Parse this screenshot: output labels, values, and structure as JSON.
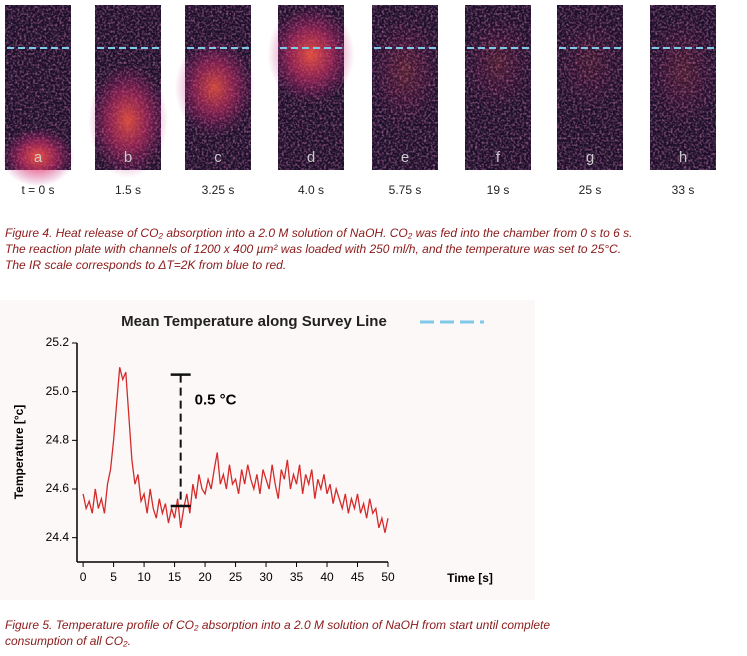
{
  "figure4": {
    "panels": [
      {
        "letter": "a",
        "time": "t = 0 s"
      },
      {
        "letter": "b",
        "time": "1.5 s"
      },
      {
        "letter": "c",
        "time": "3.25 s"
      },
      {
        "letter": "d",
        "time": "4.0 s"
      },
      {
        "letter": "e",
        "time": "5.75 s"
      },
      {
        "letter": "f",
        "time": "19 s"
      },
      {
        "letter": "g",
        "time": "25 s"
      },
      {
        "letter": "h",
        "time": "33 s"
      }
    ],
    "caption": [
      "Figure 4. Heat release of CO₂ absorption into a 2.0 M solution of NaOH. CO₂ was fed into the chamber from 0 s to 6 s.",
      "The reaction plate with channels of 1200 x 400 µm² was loaded with 250 ml/h, and the temperature was set to 25°C.",
      "The IR scale corresponds to ΔT=2K from blue to red."
    ]
  },
  "chart_data": {
    "type": "line",
    "title": "Mean Temperature along Survey Line",
    "x_label": "Time [s]",
    "y_label": "Temperature [°c]",
    "x": [
      0,
      0.5,
      1,
      1.5,
      2,
      2.5,
      3,
      3.5,
      4,
      4.5,
      5,
      5.5,
      6,
      6.5,
      7,
      7.5,
      8,
      8.5,
      9,
      9.5,
      10,
      10.5,
      11,
      11.5,
      12,
      12.5,
      13,
      13.5,
      14,
      14.5,
      15,
      15.5,
      16,
      16.5,
      17,
      17.5,
      18,
      18.5,
      19,
      19.5,
      20,
      20.5,
      21,
      21.5,
      22,
      22.5,
      23,
      23.5,
      24,
      24.5,
      25,
      25.5,
      26,
      26.5,
      27,
      27.5,
      28,
      28.5,
      29,
      29.5,
      30,
      30.5,
      31,
      31.5,
      32,
      32.5,
      33,
      33.5,
      34,
      34.5,
      35,
      35.5,
      36,
      36.5,
      37,
      37.5,
      38,
      38.5,
      39,
      39.5,
      40,
      40.5,
      41,
      41.5,
      42,
      42.5,
      43,
      43.5,
      44,
      44.5,
      45,
      45.5,
      46,
      46.5,
      47,
      47.5,
      48,
      48.5,
      49,
      49.5,
      50
    ],
    "series": [
      {
        "name": "Survey Line",
        "color": "#d42a2a",
        "values": [
          24.58,
          24.52,
          24.55,
          24.5,
          24.6,
          24.52,
          24.56,
          24.5,
          24.62,
          24.68,
          24.8,
          24.95,
          25.1,
          25.05,
          25.08,
          24.9,
          24.72,
          24.62,
          24.66,
          24.55,
          24.58,
          24.5,
          24.6,
          24.52,
          24.48,
          24.56,
          24.5,
          24.54,
          24.46,
          24.52,
          24.48,
          24.56,
          24.44,
          24.52,
          24.58,
          24.5,
          24.62,
          24.56,
          24.66,
          24.6,
          24.58,
          24.64,
          24.6,
          24.68,
          24.75,
          24.62,
          24.66,
          24.6,
          24.7,
          24.62,
          24.64,
          24.58,
          24.68,
          24.62,
          24.7,
          24.64,
          24.6,
          24.66,
          24.58,
          24.68,
          24.64,
          24.6,
          24.7,
          24.62,
          24.56,
          24.68,
          24.64,
          24.72,
          24.6,
          24.66,
          24.62,
          24.7,
          24.58,
          24.66,
          24.62,
          24.68,
          24.56,
          24.64,
          24.6,
          24.66,
          24.58,
          24.62,
          24.54,
          24.6,
          24.56,
          24.52,
          24.58,
          24.5,
          24.56,
          24.52,
          24.58,
          24.5,
          24.54,
          24.48,
          24.56,
          24.5,
          24.52,
          24.44,
          24.48,
          24.42,
          24.48
        ]
      }
    ],
    "legend_color": "#7ec8e8",
    "xlim": [
      -1,
      50
    ],
    "xticks": [
      0,
      5,
      10,
      15,
      20,
      25,
      30,
      35,
      40,
      45,
      50
    ],
    "ylim": [
      24.3,
      25.2
    ],
    "yticks": [
      24.4,
      24.6,
      24.8,
      {
        "value": 25,
        "label": "25.0"
      },
      25.2
    ],
    "annotation": {
      "label": "0.5 °C",
      "x": 16,
      "y": [
        25.07,
        24.53
      ]
    }
  },
  "figure5_caption": [
    "Figure 5. Temperature profile of CO₂ absorption into a 2.0 M solution of NaOH from start until complete",
    "consumption of all CO₂."
  ]
}
